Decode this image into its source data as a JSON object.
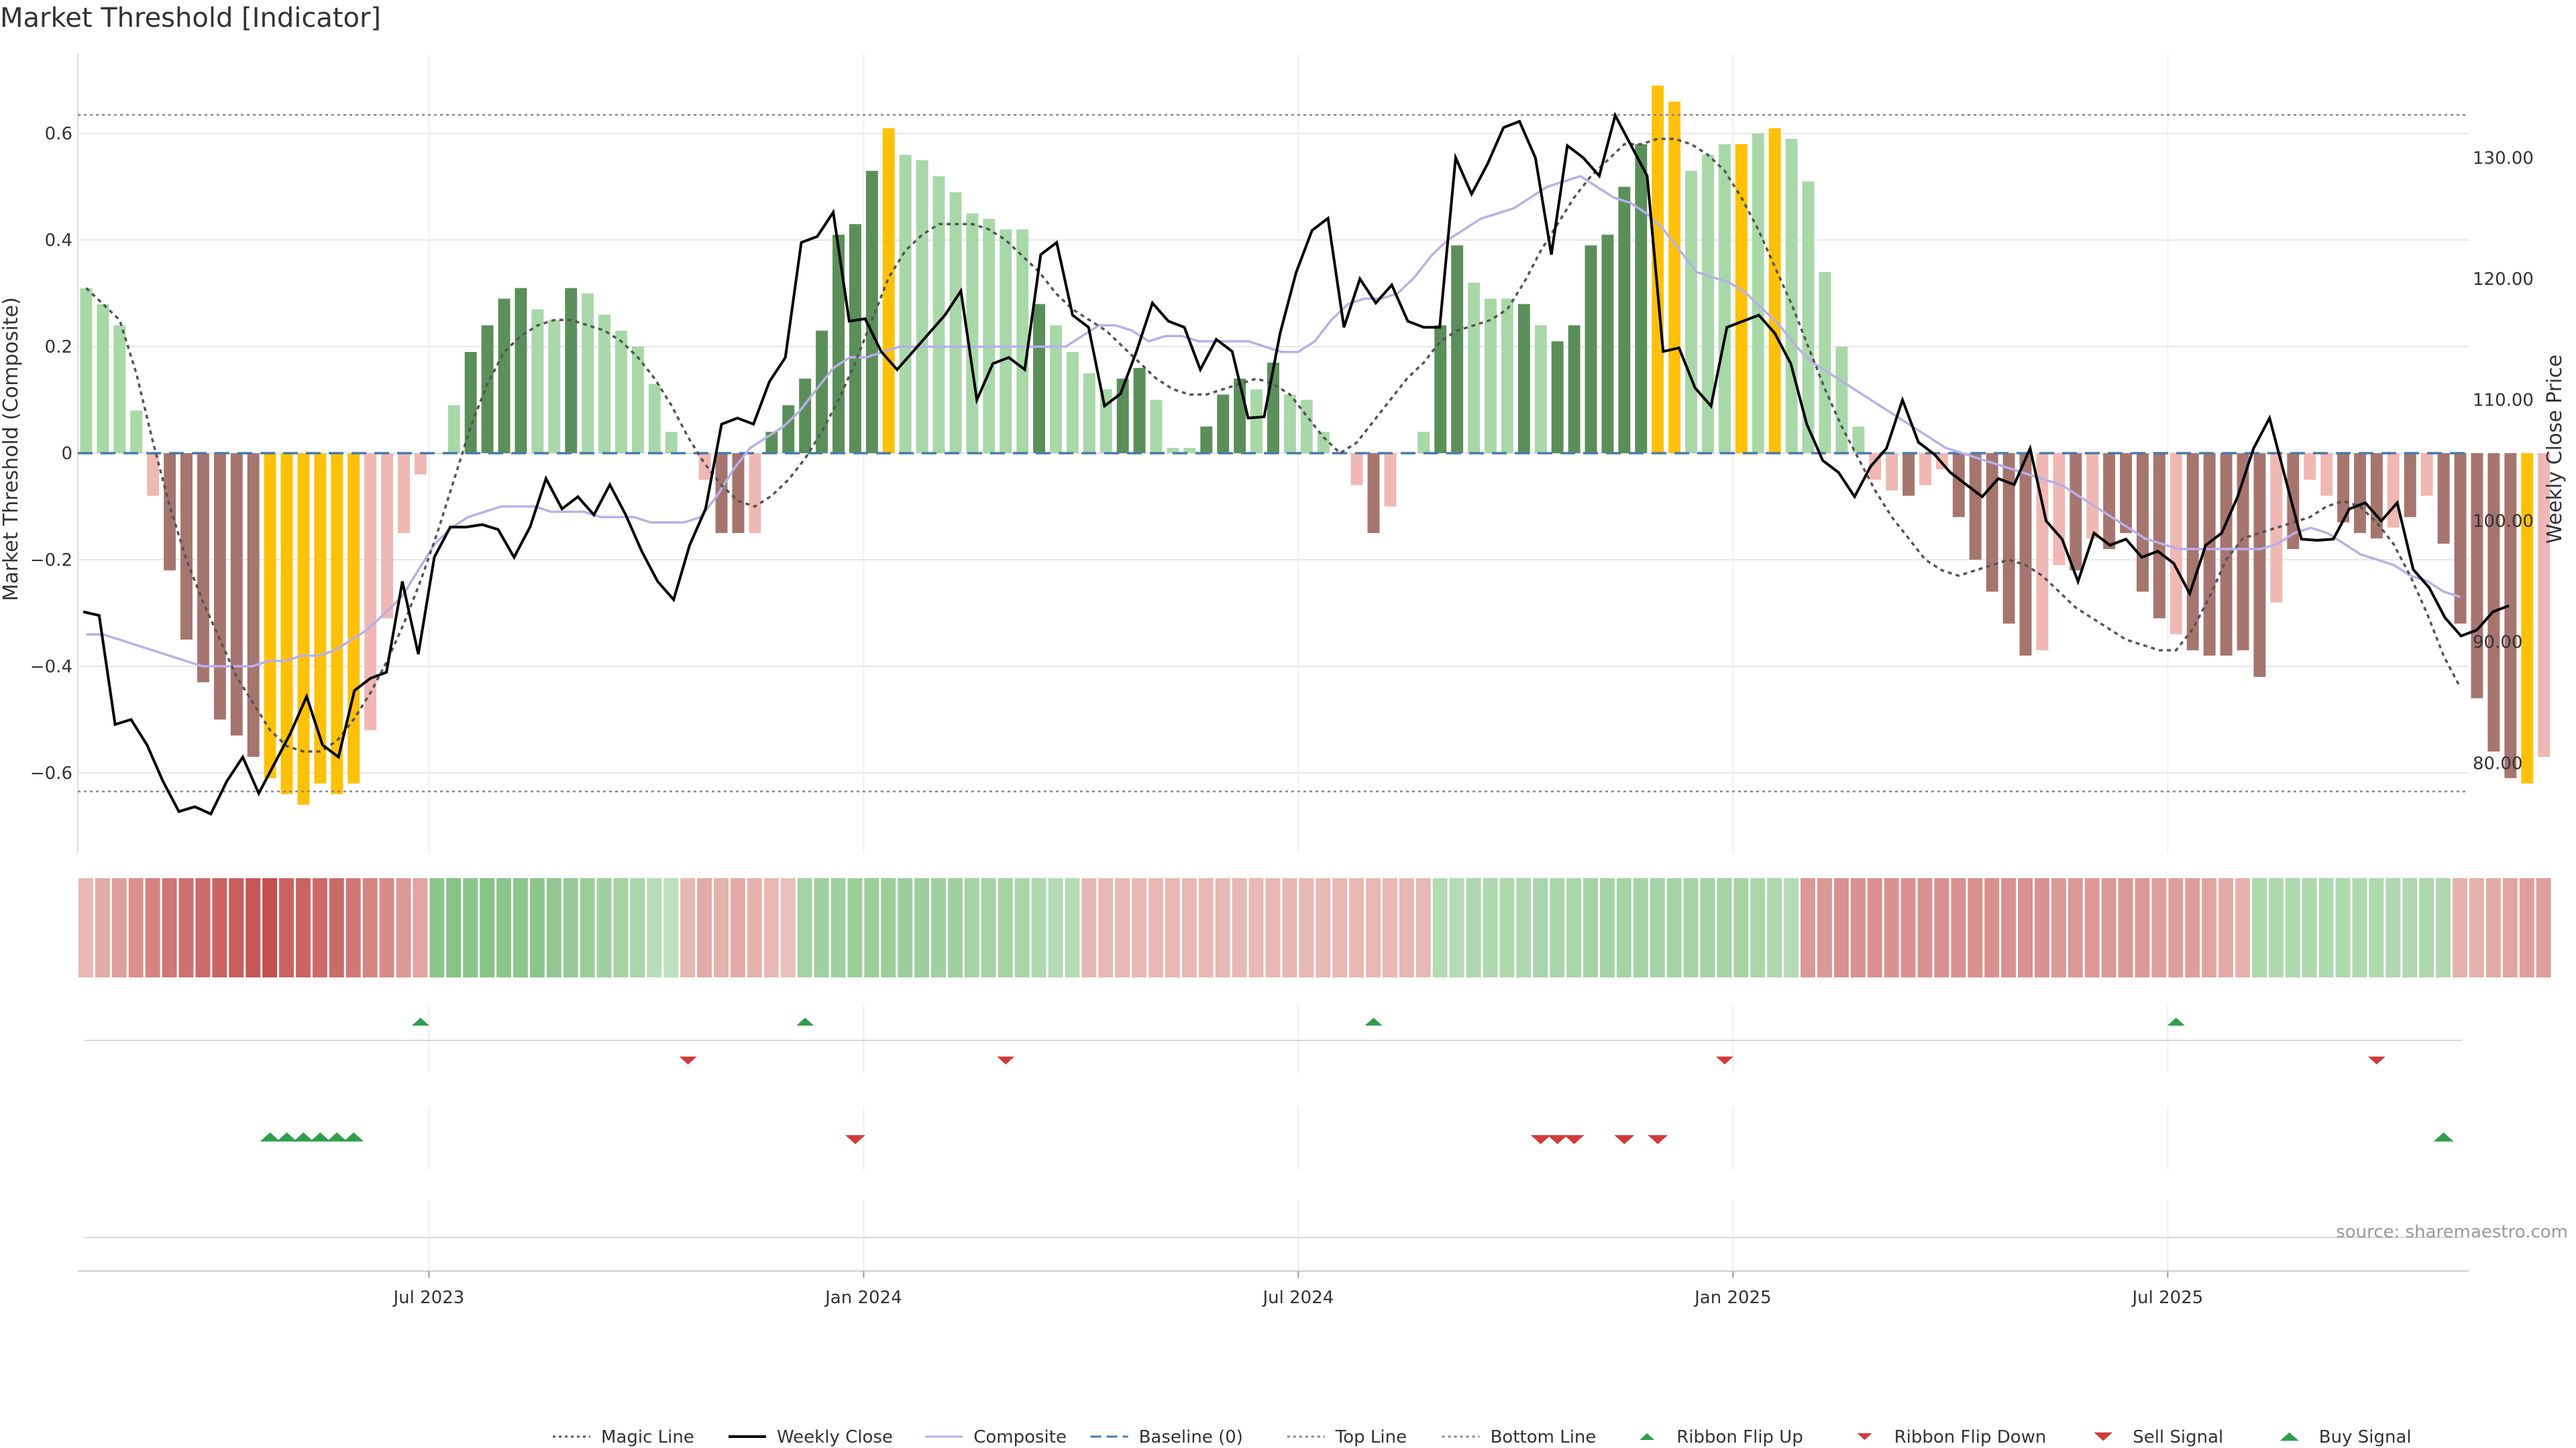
{
  "chart_data": {
    "type": "bar",
    "title": "Market Threshold [Indicator]",
    "ylabel_left": "Market Threshold (Composite)",
    "ylabel_right": "Weekly Close Price",
    "source": "source: sharemaestro.com",
    "x_ticks": [
      "Jul 2023",
      "Jan 2024",
      "Jul 2024",
      "Jan 2025",
      "Jul 2025"
    ],
    "x_tick_weeks": [
      21,
      47,
      73,
      99,
      125
    ],
    "weeks": 143,
    "left_axis": {
      "range": [
        -0.75,
        0.75
      ],
      "ticks": [
        0.6,
        0.4,
        0.2,
        0,
        -0.2,
        -0.4,
        -0.6
      ],
      "tick_labels": [
        "0.6",
        "0.4",
        "0.2",
        "0",
        "−0.2",
        "−0.4",
        "−0.6"
      ]
    },
    "right_axis": {
      "range": [
        72.6,
        138.6
      ],
      "ticks": [
        130,
        120,
        110,
        100,
        90,
        80
      ],
      "tick_labels": [
        "130.00",
        "120.00",
        "110.00",
        "100.00",
        "90.00",
        "80.00"
      ]
    },
    "top_line": 0.635,
    "bottom_line": -0.635,
    "baseline": 0,
    "composite_bars": [
      0.31,
      0.28,
      0.24,
      0.08,
      -0.08,
      -0.22,
      -0.35,
      -0.43,
      -0.5,
      -0.53,
      -0.57,
      -0.61,
      -0.64,
      -0.66,
      -0.62,
      -0.64,
      -0.62,
      -0.52,
      -0.31,
      -0.15,
      -0.04,
      0.0,
      0.09,
      0.19,
      0.24,
      0.29,
      0.31,
      0.27,
      0.25,
      0.31,
      0.3,
      0.26,
      0.23,
      0.2,
      0.13,
      0.04,
      0.0,
      -0.05,
      -0.15,
      -0.15,
      -0.15,
      0.04,
      0.09,
      0.14,
      0.23,
      0.41,
      0.43,
      0.53,
      0.61,
      0.56,
      0.55,
      0.52,
      0.49,
      0.45,
      0.44,
      0.42,
      0.42,
      0.28,
      0.24,
      0.19,
      0.15,
      0.12,
      0.14,
      0.16,
      0.1,
      0.01,
      0.01,
      0.05,
      0.11,
      0.14,
      0.12,
      0.17,
      0.11,
      0.1,
      0.04,
      0.0,
      -0.06,
      -0.15,
      -0.1,
      0.0,
      0.04,
      0.24,
      0.39,
      0.32,
      0.29,
      0.29,
      0.28,
      0.24,
      0.21,
      0.24,
      0.39,
      0.41,
      0.5,
      0.58,
      0.69,
      0.66,
      0.53,
      0.56,
      0.58,
      0.58,
      0.6,
      0.61,
      0.59,
      0.51,
      0.34,
      0.2,
      0.05,
      -0.05,
      -0.07,
      -0.08,
      -0.06,
      -0.03,
      -0.12,
      -0.2,
      -0.26,
      -0.32,
      -0.38,
      -0.37,
      -0.21,
      -0.22,
      -0.16,
      -0.18,
      -0.15,
      -0.26,
      -0.31,
      -0.34,
      -0.37,
      -0.38,
      -0.38,
      -0.37,
      -0.42,
      -0.28,
      -0.18,
      -0.05,
      -0.08,
      -0.13,
      -0.15,
      -0.16,
      -0.14,
      -0.12,
      -0.08,
      -0.17,
      -0.32,
      -0.46,
      -0.56,
      -0.61,
      -0.62,
      -0.57
    ],
    "bar_colors": [
      "lg",
      "lg",
      "lg",
      "lg",
      "lr",
      "dr",
      "dr",
      "dr",
      "dr",
      "dr",
      "dr",
      "y",
      "y",
      "y",
      "y",
      "y",
      "y",
      "lr",
      "lr",
      "lr",
      "lr",
      "lg",
      "lg",
      "dg",
      "dg",
      "dg",
      "dg",
      "lg",
      "lg",
      "dg",
      "lg",
      "lg",
      "lg",
      "lg",
      "lg",
      "lg",
      "lg",
      "lr",
      "dr",
      "dr",
      "lr",
      "dg",
      "dg",
      "dg",
      "dg",
      "dg",
      "dg",
      "dg",
      "y",
      "lg",
      "lg",
      "lg",
      "lg",
      "lg",
      "lg",
      "lg",
      "lg",
      "dg",
      "lg",
      "lg",
      "lg",
      "lg",
      "dg",
      "dg",
      "lg",
      "lg",
      "lg",
      "dg",
      "dg",
      "dg",
      "lg",
      "dg",
      "lg",
      "lg",
      "lg",
      "lg",
      "lr",
      "dr",
      "lr",
      "lg",
      "lg",
      "dg",
      "dg",
      "lg",
      "lg",
      "lg",
      "dg",
      "lg",
      "dg",
      "dg",
      "dg",
      "dg",
      "dg",
      "dg",
      "y",
      "y",
      "lg",
      "lg",
      "lg",
      "y",
      "lg",
      "y",
      "lg",
      "lg",
      "lg",
      "lg",
      "lg",
      "lr",
      "lr",
      "dr",
      "lr",
      "lr",
      "dr",
      "dr",
      "dr",
      "dr",
      "dr",
      "lr",
      "lr",
      "dr",
      "lr",
      "dr",
      "dr",
      "dr",
      "dr",
      "lr",
      "dr",
      "dr",
      "dr",
      "dr",
      "dr",
      "lr",
      "dr",
      "lr",
      "lr",
      "dr",
      "dr",
      "dr",
      "lr",
      "dr",
      "lr",
      "dr",
      "dr",
      "dr",
      "dr",
      "dr",
      "y",
      "lr"
    ],
    "weekly_close": [
      92.5,
      92.2,
      83.2,
      83.6,
      81.5,
      78.5,
      76.0,
      76.4,
      75.8,
      78.5,
      80.5,
      77.5,
      80.0,
      82.5,
      85.5,
      81.5,
      80.5,
      86.0,
      87.0,
      87.5,
      95.0,
      89.0,
      97.0,
      99.5,
      99.5,
      99.7,
      99.3,
      97.0,
      99.5,
      103.5,
      101.0,
      102.0,
      100.5,
      103.0,
      100.5,
      97.5,
      95.0,
      93.5,
      98.0,
      101.0,
      108.0,
      108.5,
      108.0,
      111.5,
      113.5,
      123.0,
      123.5,
      125.5,
      116.5,
      116.7,
      114.0,
      112.5,
      114.0,
      115.5,
      117.0,
      119.0,
      110.0,
      113.0,
      113.5,
      112.5,
      122.0,
      123.0,
      117.0,
      116.0,
      109.5,
      110.5,
      114.0,
      118.0,
      116.5,
      116.0,
      112.5,
      115.0,
      114.0,
      108.5,
      108.6,
      115.5,
      120.5,
      124.0,
      125.0,
      116.0,
      120.0,
      118.0,
      119.5,
      116.5,
      116.0,
      116.0,
      130.0,
      127.0,
      129.5,
      132.5,
      133.0,
      130.0,
      122.0,
      131.0,
      130.0,
      128.5,
      133.5,
      131.0,
      128.5,
      114.0,
      114.3,
      111.0,
      109.5,
      116.0,
      116.5,
      117.0,
      115.5,
      113.0,
      108.0,
      105.0,
      104.0,
      102.0,
      104.5,
      106.0,
      110.0,
      106.5,
      105.5,
      104.0,
      103.0,
      102.0,
      103.5,
      103.0,
      106.0,
      100.0,
      98.5,
      95.0,
      99.0,
      98.0,
      98.5,
      97.0,
      97.5,
      96.5,
      94.0,
      98.0,
      99.0,
      102.0,
      106.0,
      108.5,
      103.5,
      98.5,
      98.4,
      98.5,
      101.0,
      101.5,
      100.0,
      101.5,
      96.0,
      94.5,
      92.0,
      90.5,
      91.0,
      92.5,
      93.0
    ],
    "magic_line": [
      0.31,
      0.28,
      0.25,
      0.15,
      0.02,
      -0.1,
      -0.2,
      -0.28,
      -0.35,
      -0.42,
      -0.47,
      -0.52,
      -0.55,
      -0.56,
      -0.56,
      -0.54,
      -0.5,
      -0.45,
      -0.39,
      -0.32,
      -0.24,
      -0.15,
      -0.05,
      0.05,
      0.13,
      0.19,
      0.22,
      0.24,
      0.25,
      0.25,
      0.24,
      0.23,
      0.21,
      0.18,
      0.14,
      0.09,
      0.03,
      -0.02,
      -0.06,
      -0.09,
      -0.1,
      -0.08,
      -0.05,
      -0.01,
      0.04,
      0.1,
      0.17,
      0.25,
      0.33,
      0.38,
      0.41,
      0.43,
      0.43,
      0.43,
      0.42,
      0.4,
      0.37,
      0.34,
      0.3,
      0.27,
      0.25,
      0.23,
      0.2,
      0.17,
      0.14,
      0.12,
      0.11,
      0.11,
      0.12,
      0.13,
      0.14,
      0.13,
      0.11,
      0.07,
      0.03,
      0.0,
      0.02,
      0.06,
      0.1,
      0.14,
      0.17,
      0.21,
      0.23,
      0.24,
      0.25,
      0.27,
      0.32,
      0.38,
      0.43,
      0.48,
      0.52,
      0.55,
      0.58,
      0.58,
      0.59,
      0.59,
      0.58,
      0.56,
      0.53,
      0.48,
      0.42,
      0.35,
      0.28,
      0.2,
      0.12,
      0.05,
      -0.01,
      -0.07,
      -0.12,
      -0.16,
      -0.2,
      -0.22,
      -0.23,
      -0.22,
      -0.21,
      -0.2,
      -0.21,
      -0.23,
      -0.26,
      -0.29,
      -0.31,
      -0.33,
      -0.35,
      -0.36,
      -0.37,
      -0.37,
      -0.33,
      -0.27,
      -0.2,
      -0.16,
      -0.15,
      -0.14,
      -0.13,
      -0.12,
      -0.1,
      -0.09,
      -0.1,
      -0.13,
      -0.17,
      -0.23,
      -0.3,
      -0.38,
      -0.44
    ],
    "composite_line": [
      -0.34,
      -0.34,
      -0.35,
      -0.36,
      -0.37,
      -0.38,
      -0.39,
      -0.4,
      -0.4,
      -0.4,
      -0.4,
      -0.39,
      -0.39,
      -0.38,
      -0.38,
      -0.37,
      -0.35,
      -0.33,
      -0.3,
      -0.27,
      -0.22,
      -0.17,
      -0.14,
      -0.12,
      -0.11,
      -0.1,
      -0.1,
      -0.1,
      -0.11,
      -0.11,
      -0.11,
      -0.12,
      -0.12,
      -0.12,
      -0.13,
      -0.13,
      -0.13,
      -0.12,
      -0.08,
      -0.03,
      0.01,
      0.03,
      0.05,
      0.08,
      0.12,
      0.16,
      0.18,
      0.18,
      0.19,
      0.2,
      0.2,
      0.2,
      0.2,
      0.2,
      0.2,
      0.2,
      0.2,
      0.2,
      0.2,
      0.2,
      0.22,
      0.24,
      0.24,
      0.23,
      0.21,
      0.22,
      0.22,
      0.21,
      0.21,
      0.21,
      0.21,
      0.2,
      0.19,
      0.19,
      0.21,
      0.25,
      0.28,
      0.29,
      0.29,
      0.3,
      0.33,
      0.37,
      0.4,
      0.42,
      0.44,
      0.45,
      0.46,
      0.48,
      0.5,
      0.51,
      0.52,
      0.5,
      0.48,
      0.47,
      0.45,
      0.42,
      0.38,
      0.34,
      0.33,
      0.32,
      0.3,
      0.27,
      0.24,
      0.2,
      0.17,
      0.15,
      0.13,
      0.11,
      0.09,
      0.07,
      0.05,
      0.03,
      0.01,
      0.0,
      -0.01,
      -0.02,
      -0.03,
      -0.04,
      -0.05,
      -0.06,
      -0.08,
      -0.1,
      -0.12,
      -0.14,
      -0.16,
      -0.17,
      -0.18,
      -0.18,
      -0.18,
      -0.18,
      -0.18,
      -0.18,
      -0.17,
      -0.15,
      -0.14,
      -0.15,
      -0.17,
      -0.19,
      -0.2,
      -0.21,
      -0.23,
      -0.24,
      -0.26,
      -0.27
    ],
    "ribbon_intensity": [
      -0.2,
      -0.3,
      -0.4,
      -0.5,
      -0.6,
      -0.7,
      -0.75,
      -0.8,
      -0.85,
      -0.9,
      -0.95,
      -1.0,
      -0.85,
      -0.85,
      -0.8,
      -0.8,
      -0.7,
      -0.6,
      -0.55,
      -0.45,
      -0.35,
      0.7,
      0.75,
      0.7,
      0.75,
      0.7,
      0.7,
      0.7,
      0.65,
      0.6,
      0.55,
      0.5,
      0.45,
      0.4,
      0.25,
      0.2,
      -0.2,
      -0.3,
      -0.25,
      -0.3,
      -0.25,
      -0.2,
      -0.15,
      0.45,
      0.5,
      0.5,
      0.55,
      0.55,
      0.55,
      0.55,
      0.55,
      0.5,
      0.5,
      0.45,
      0.45,
      0.45,
      0.4,
      0.35,
      0.3,
      0.3,
      -0.2,
      -0.2,
      -0.2,
      -0.2,
      -0.2,
      -0.2,
      -0.2,
      -0.2,
      -0.2,
      -0.2,
      -0.2,
      -0.2,
      -0.2,
      -0.2,
      -0.2,
      -0.2,
      -0.2,
      -0.2,
      -0.2,
      -0.2,
      -0.2,
      0.3,
      0.3,
      0.35,
      0.35,
      0.35,
      0.35,
      0.4,
      0.4,
      0.4,
      0.45,
      0.45,
      0.45,
      0.45,
      0.45,
      0.45,
      0.45,
      0.45,
      0.45,
      0.45,
      0.4,
      0.35,
      0.3,
      -0.45,
      -0.45,
      -0.5,
      -0.5,
      -0.5,
      -0.5,
      -0.5,
      -0.5,
      -0.5,
      -0.5,
      -0.5,
      -0.5,
      -0.5,
      -0.5,
      -0.5,
      -0.45,
      -0.45,
      -0.45,
      -0.45,
      -0.45,
      -0.45,
      -0.4,
      -0.4,
      -0.4,
      -0.35,
      -0.3,
      -0.25,
      0.35,
      0.35,
      0.35,
      0.35,
      0.35,
      0.35,
      0.35,
      0.35,
      0.35,
      0.35,
      0.35,
      0.35,
      -0.25,
      -0.25,
      -0.3,
      -0.35,
      -0.4,
      -0.4
    ],
    "ribbon_flip_up_weeks": [
      20,
      43,
      77,
      125
    ],
    "ribbon_flip_down_weeks": [
      36,
      55,
      98,
      137
    ],
    "buy_signal_weeks": [
      11,
      12,
      13,
      14,
      15,
      16,
      141
    ],
    "sell_signal_weeks": [
      46,
      87,
      88,
      89,
      92,
      94
    ],
    "legend": [
      {
        "label": "Magic Line",
        "style": "dotted-line"
      },
      {
        "label": "Weekly Close",
        "style": "line"
      },
      {
        "label": "Composite",
        "style": "line"
      },
      {
        "label": "Baseline (0)",
        "style": "dashed-line"
      },
      {
        "label": "Top Line",
        "style": "dotted-line"
      },
      {
        "label": "Bottom Line",
        "style": "dotted-line"
      },
      {
        "label": "Ribbon Flip Up",
        "style": "triangle-up"
      },
      {
        "label": "Ribbon Flip Down",
        "style": "triangle-down"
      },
      {
        "label": "Sell Signal",
        "style": "triangle-down"
      },
      {
        "label": "Buy Signal",
        "style": "triangle-up"
      }
    ],
    "legend_position": "bottom-center",
    "grid": true
  },
  "colors": {
    "light_green": "#a8d8a8",
    "dark_green": "#5a8f5a",
    "light_red": "#f0b8b4",
    "dark_red": "#a67570",
    "yellow": "#ffc107",
    "close_line": "#000000",
    "composite_line": "#b8b0e8",
    "magic_line": "#555555",
    "baseline": "#4a7aa8",
    "threshold": "#888888",
    "flip_up": "#2e9e4a",
    "flip_down": "#d23a3a",
    "buy": "#2e9e4a",
    "sell": "#d23a3a",
    "grid": "#e6e6e6"
  }
}
